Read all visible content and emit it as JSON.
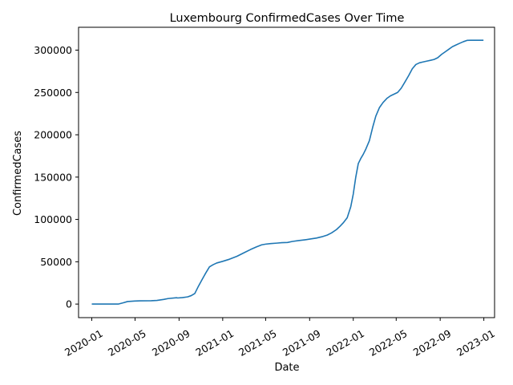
{
  "chart_data": {
    "type": "line",
    "title": "Luxembourg  ConfirmedCases Over Time",
    "xlabel": "Date",
    "ylabel": "ConfirmedCases",
    "x_ticks": [
      "2020-01",
      "2020-05",
      "2020-09",
      "2021-01",
      "2021-05",
      "2021-09",
      "2022-01",
      "2022-05",
      "2022-09",
      "2023-01"
    ],
    "y_ticks": [
      0,
      50000,
      100000,
      150000,
      200000,
      250000,
      300000
    ],
    "y_tick_labels": [
      "0",
      "50000",
      "100000",
      "150000",
      "200000",
      "250000",
      "300000"
    ],
    "xlim": [
      "2019-11-25",
      "2023-01-31"
    ],
    "ylim": [
      -16000,
      327000
    ],
    "grid": false,
    "color": "#1f77b4",
    "series": [
      {
        "x": [
          "2020-01-01",
          "2020-02-15",
          "2020-03-01",
          "2020-03-15",
          "2020-03-29",
          "2020-04-10",
          "2020-04-30",
          "2020-05-15",
          "2020-06-15",
          "2020-07-01",
          "2020-07-20",
          "2020-08-01",
          "2020-08-25",
          "2020-08-28",
          "2020-09-10",
          "2020-09-25",
          "2020-10-05",
          "2020-10-15",
          "2020-10-25",
          "2020-11-05",
          "2020-11-15",
          "2020-11-25",
          "2020-12-05",
          "2020-12-15",
          "2021-01-01",
          "2021-01-20",
          "2021-02-10",
          "2021-03-01",
          "2021-03-20",
          "2021-04-05",
          "2021-04-20",
          "2021-05-01",
          "2021-05-15",
          "2021-06-01",
          "2021-06-15",
          "2021-07-01",
          "2021-07-15",
          "2021-08-01",
          "2021-08-20",
          "2021-09-05",
          "2021-09-20",
          "2021-10-05",
          "2021-10-20",
          "2021-11-01",
          "2021-11-15",
          "2021-11-25",
          "2021-12-05",
          "2021-12-15",
          "2021-12-25",
          "2022-01-01",
          "2022-01-08",
          "2022-01-15",
          "2022-01-22",
          "2022-01-29",
          "2022-02-05",
          "2022-02-15",
          "2022-02-25",
          "2022-03-05",
          "2022-03-15",
          "2022-03-25",
          "2022-04-05",
          "2022-04-15",
          "2022-04-25",
          "2022-05-05",
          "2022-05-15",
          "2022-05-25",
          "2022-06-05",
          "2022-06-15",
          "2022-06-25",
          "2022-07-05",
          "2022-07-15",
          "2022-07-25",
          "2022-08-05",
          "2022-08-15",
          "2022-08-25",
          "2022-09-05",
          "2022-09-15",
          "2022-09-25",
          "2022-10-05",
          "2022-10-15",
          "2022-10-25",
          "2022-11-05",
          "2022-11-15",
          "2022-11-25",
          "2022-12-05",
          "2022-12-15",
          "2022-12-25",
          "2022-12-31"
        ],
        "y": [
          0,
          0,
          0,
          0,
          1500,
          3000,
          3600,
          3800,
          4000,
          4300,
          5500,
          6500,
          7500,
          7200,
          7600,
          8500,
          10000,
          12500,
          21000,
          29500,
          37000,
          44000,
          46500,
          48500,
          50500,
          53000,
          56500,
          60500,
          64500,
          67500,
          70000,
          70800,
          71500,
          72000,
          72500,
          72800,
          74000,
          75000,
          76000,
          77000,
          78000,
          79500,
          81500,
          84000,
          88000,
          92000,
          96500,
          102000,
          115000,
          130000,
          150000,
          166000,
          172000,
          177000,
          183000,
          193000,
          210000,
          222000,
          232000,
          238000,
          243000,
          246000,
          248000,
          250000,
          255000,
          262000,
          270000,
          278000,
          283000,
          285000,
          286000,
          287000,
          288000,
          289000,
          291000,
          295000,
          298000,
          301000,
          304000,
          306000,
          308000,
          310000,
          311500,
          311700,
          311700,
          311700,
          311700,
          311700
        ]
      }
    ]
  }
}
